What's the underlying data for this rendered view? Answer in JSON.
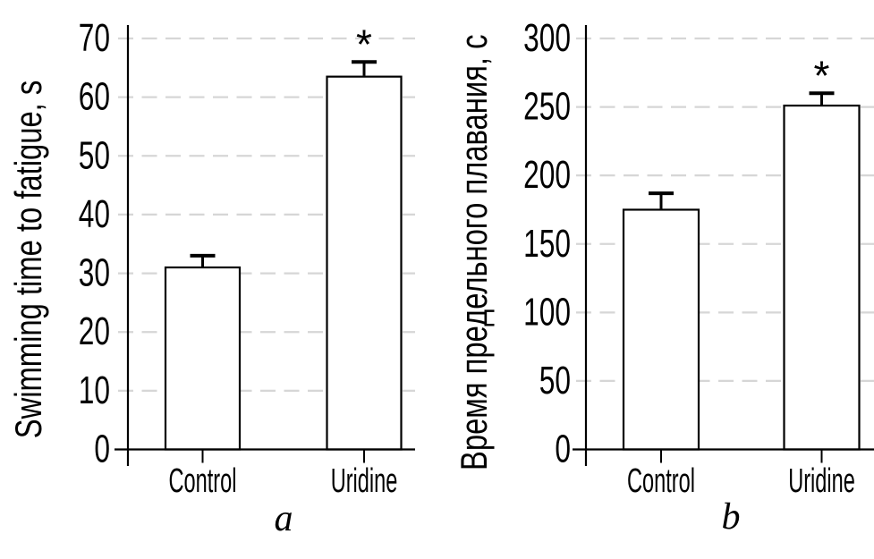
{
  "page": {
    "background": "#ffffff",
    "text_color": "#000000"
  },
  "chart_data": [
    {
      "type": "bar",
      "panel_label": "a",
      "title": "",
      "xlabel": "",
      "ylabel": "Swimming time to fatigue, s",
      "categories": [
        "Control",
        "Uridine"
      ],
      "values": [
        31,
        63.5
      ],
      "errors": [
        2,
        2.5
      ],
      "error_bars": "upper only",
      "significance": [
        "",
        "*"
      ],
      "ylim": [
        0,
        70
      ],
      "yticks": [
        0,
        10,
        20,
        30,
        40,
        50,
        60,
        70
      ],
      "bar_fill": "#ffffff",
      "bar_stroke": "#000000",
      "grid": "horizontal dashed",
      "grid_color": "#d6d6d6",
      "legend": "none"
    },
    {
      "type": "bar",
      "panel_label": "b",
      "title": "",
      "xlabel": "",
      "ylabel": "Время предельного плавания, с",
      "categories": [
        "Control",
        "Uridine"
      ],
      "values": [
        175,
        251
      ],
      "errors": [
        12,
        9
      ],
      "error_bars": "upper only",
      "significance": [
        "",
        "*"
      ],
      "ylim": [
        0,
        300
      ],
      "yticks": [
        0,
        50,
        100,
        150,
        200,
        250,
        300
      ],
      "bar_fill": "#ffffff",
      "bar_stroke": "#000000",
      "grid": "horizontal dashed",
      "grid_color": "#d6d6d6",
      "legend": "none"
    }
  ]
}
